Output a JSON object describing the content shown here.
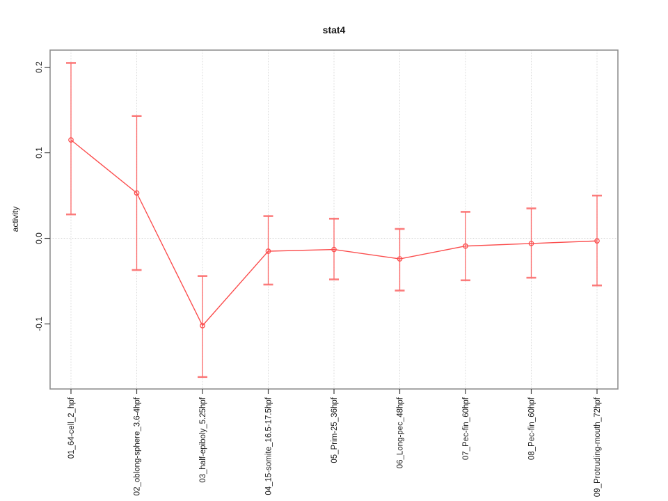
{
  "figure": {
    "background": "#ffffff"
  },
  "chart_data": {
    "type": "line",
    "title": "stat4",
    "xlabel": "",
    "ylabel": "activity",
    "categories": [
      "01_64-cell_2_hpf",
      "02_oblong-sphere_3.6-4hpf",
      "03_half-epiboly_5.25hpf",
      "04_15-somite_16.5-17.5hpf",
      "05_Prim-25_36hpf",
      "06_Long-pec_48hpf",
      "07_Pec-fin_60hpf",
      "08_Pec-fin_60hpf",
      "09_Protruding-mouth_72hpf"
    ],
    "series": [
      {
        "name": "stat4 activity",
        "values": [
          0.115,
          0.053,
          -0.102,
          -0.015,
          -0.013,
          -0.024,
          -0.009,
          -0.006,
          -0.003
        ],
        "upper": [
          0.205,
          0.143,
          -0.044,
          0.026,
          0.023,
          0.011,
          0.031,
          0.035,
          0.05
        ],
        "lower": [
          0.028,
          -0.037,
          -0.162,
          -0.054,
          -0.048,
          -0.061,
          -0.049,
          -0.046,
          -0.055
        ]
      }
    ],
    "error_bars": true,
    "marker": "open-circle",
    "yticks": [
      -0.1,
      0.0,
      0.1,
      0.2
    ],
    "ytick_labels": [
      "-0.1",
      "0.0",
      "0.1",
      "0.2"
    ],
    "ylim": [
      -0.176,
      0.22
    ],
    "grid": {
      "vertical_dotted_per_category": true,
      "horizontal_dotted_at_zero": true
    },
    "legend": "none",
    "colors": {
      "line": "#fb4e4e",
      "marker": "#fb4e4e",
      "error_bar": "rgba(251,78,78,0.85)",
      "error_cap": "rgba(251,110,110,0.9)",
      "grid": "#d8d8d8",
      "box": "#8f8f8f",
      "tick": "#3c3c3c",
      "text": "#1a1a1a",
      "background": "#ffffff"
    }
  }
}
